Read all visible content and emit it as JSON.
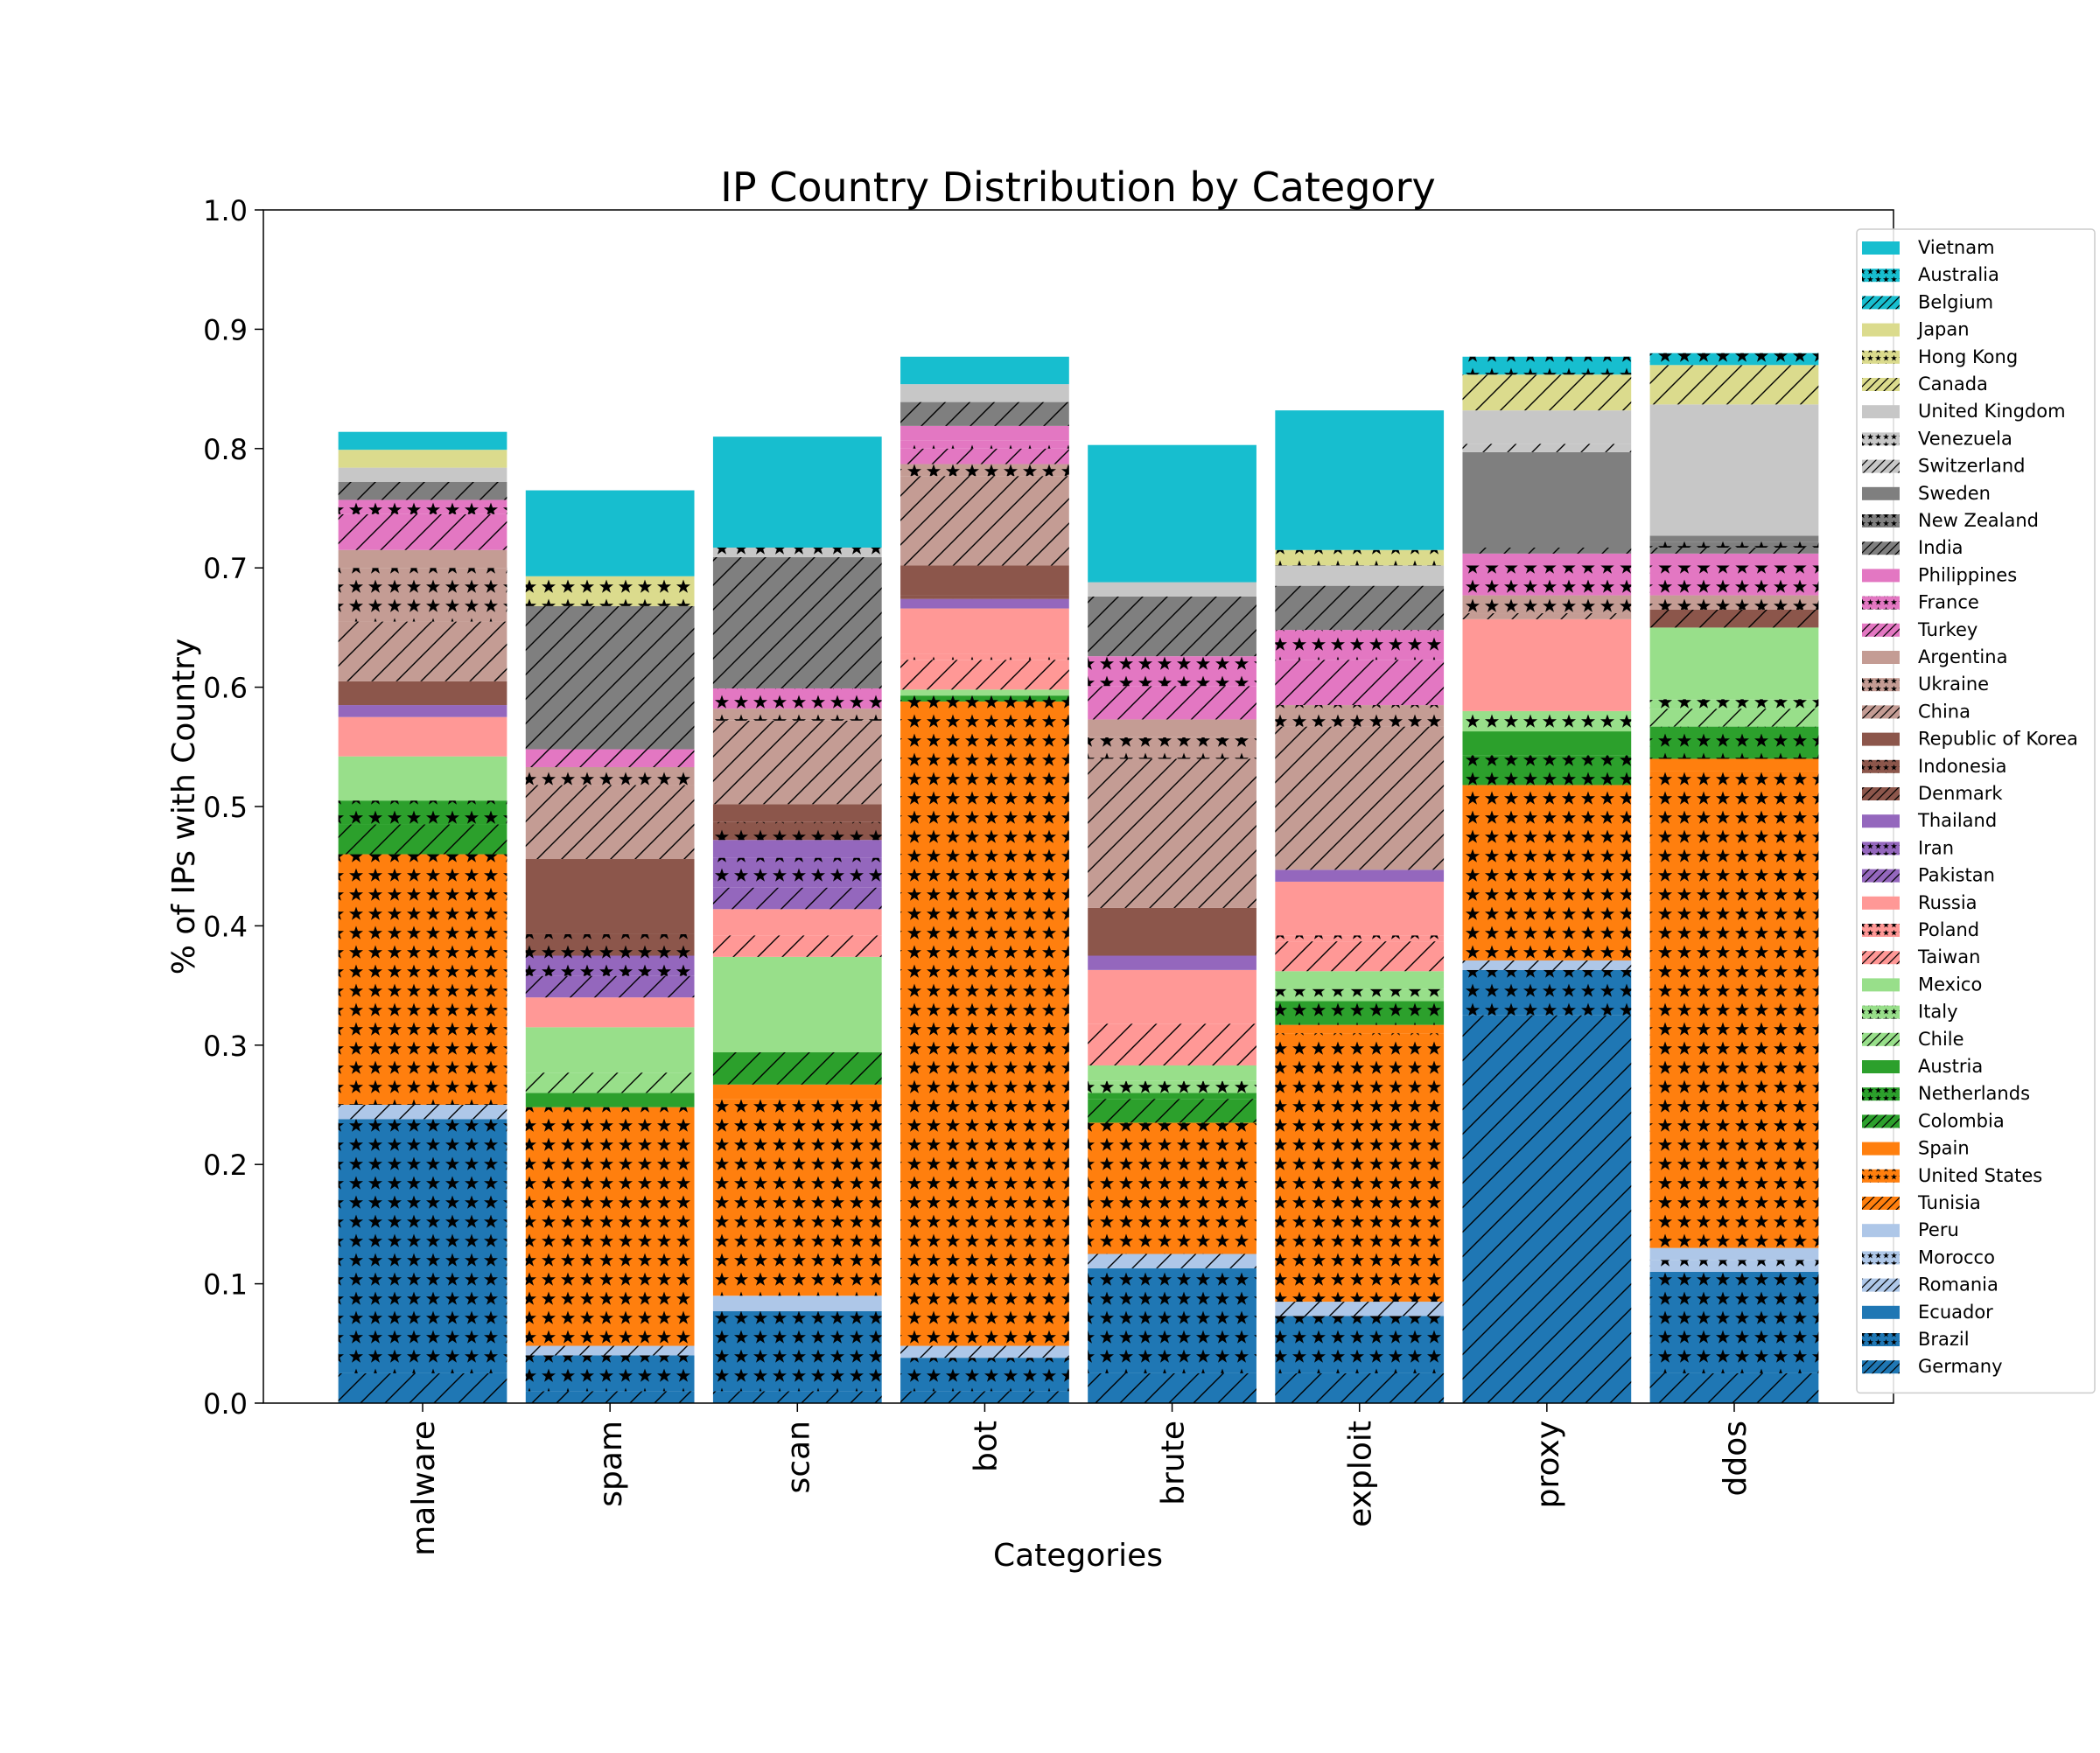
{
  "chart_data": {
    "type": "bar",
    "stacked": true,
    "title": "IP Country Distribution by Category",
    "xlabel": "Categories",
    "ylabel": "% of IPs with Country",
    "ylim": [
      0,
      1.0
    ],
    "yticks": [
      "0.0",
      "0.1",
      "0.2",
      "0.3",
      "0.4",
      "0.5",
      "0.6",
      "0.7",
      "0.8",
      "0.9",
      "1.0"
    ],
    "grid": false,
    "legend_position": "right",
    "categories": [
      "malware",
      "spam",
      "scan",
      "bot",
      "brute",
      "exploit",
      "proxy",
      "ddos"
    ],
    "series": [
      {
        "name": "Germany",
        "color": "#1f77b4",
        "hatch": "slash",
        "values": [
          0.025,
          0.01,
          0.01,
          0.01,
          0.025,
          0.025,
          0.325,
          0.025
        ]
      },
      {
        "name": "Brazil",
        "color": "#1f77b4",
        "hatch": "star",
        "values": [
          0.213,
          0.03,
          0.067,
          0.028,
          0.088,
          0.048,
          0.038,
          0.085
        ]
      },
      {
        "name": "Ecuador",
        "color": "#1f77b4",
        "hatch": "none",
        "values": [
          0,
          0,
          0,
          0,
          0,
          0,
          0,
          0
        ]
      },
      {
        "name": "Romania",
        "color": "#aec7e8",
        "hatch": "slash",
        "values": [
          0.012,
          0.008,
          0,
          0.01,
          0.012,
          0.012,
          0.008,
          0
        ]
      },
      {
        "name": "Morocco",
        "color": "#aec7e8",
        "hatch": "star",
        "values": [
          0,
          0,
          0,
          0,
          0,
          0,
          0,
          0.01
        ]
      },
      {
        "name": "Peru",
        "color": "#aec7e8",
        "hatch": "none",
        "values": [
          0,
          0,
          0.013,
          0,
          0,
          0,
          0,
          0.01
        ]
      },
      {
        "name": "Tunisia",
        "color": "#ff7f0e",
        "hatch": "slash",
        "values": [
          0,
          0,
          0,
          0,
          0,
          0,
          0,
          0
        ]
      },
      {
        "name": "United States",
        "color": "#ff7f0e",
        "hatch": "star",
        "values": [
          0.21,
          0.2,
          0.165,
          0.54,
          0.11,
          0.225,
          0.147,
          0.4
        ]
      },
      {
        "name": "Spain",
        "color": "#ff7f0e",
        "hatch": "none",
        "values": [
          0,
          0,
          0.012,
          0,
          0,
          0.007,
          0,
          0.01
        ]
      },
      {
        "name": "Colombia",
        "color": "#2ca02c",
        "hatch": "slash",
        "values": [
          0.025,
          0,
          0.027,
          0,
          0.02,
          0,
          0,
          0
        ]
      },
      {
        "name": "Netherlands",
        "color": "#2ca02c",
        "hatch": "star",
        "values": [
          0.02,
          0,
          0,
          0.005,
          0.005,
          0.02,
          0.025,
          0.027
        ]
      },
      {
        "name": "Austria",
        "color": "#2ca02c",
        "hatch": "none",
        "values": [
          0,
          0.012,
          0,
          0,
          0,
          0,
          0.02,
          0
        ]
      },
      {
        "name": "Chile",
        "color": "#98df8a",
        "hatch": "slash",
        "values": [
          0,
          0.017,
          0,
          0,
          0,
          0,
          0,
          0.015
        ]
      },
      {
        "name": "Italy",
        "color": "#98df8a",
        "hatch": "star",
        "values": [
          0,
          0,
          0,
          0,
          0.01,
          0.01,
          0.017,
          0.008
        ]
      },
      {
        "name": "Mexico",
        "color": "#98df8a",
        "hatch": "none",
        "values": [
          0.037,
          0.038,
          0.08,
          0.005,
          0.013,
          0.015,
          0,
          0.06
        ]
      },
      {
        "name": "Taiwan",
        "color": "#ff9896",
        "hatch": "slash",
        "values": [
          0,
          0,
          0.018,
          0.025,
          0.035,
          0.025,
          0,
          0
        ]
      },
      {
        "name": "Poland",
        "color": "#ff9896",
        "hatch": "star",
        "values": [
          0,
          0,
          0,
          0.005,
          0,
          0.005,
          0,
          0
        ]
      },
      {
        "name": "Russia",
        "color": "#ff9896",
        "hatch": "none",
        "values": [
          0.033,
          0.025,
          0.022,
          0.038,
          0.045,
          0.045,
          0.077,
          0
        ]
      },
      {
        "name": "Pakistan",
        "color": "#9467bd",
        "hatch": "slash",
        "values": [
          0,
          0.018,
          0.018,
          0,
          0,
          0,
          0,
          0
        ]
      },
      {
        "name": "Iran",
        "color": "#9467bd",
        "hatch": "star",
        "values": [
          0,
          0.017,
          0.025,
          0,
          0,
          0,
          0,
          0
        ]
      },
      {
        "name": "Thailand",
        "color": "#9467bd",
        "hatch": "none",
        "values": [
          0.01,
          0,
          0.015,
          0.008,
          0.012,
          0.01,
          0,
          0
        ]
      },
      {
        "name": "Denmark",
        "color": "#8c564b",
        "hatch": "slash",
        "values": [
          0,
          0,
          0,
          0,
          0,
          0,
          0,
          0.015
        ]
      },
      {
        "name": "Indonesia",
        "color": "#8c564b",
        "hatch": "star",
        "values": [
          0,
          0.018,
          0.015,
          0.003,
          0,
          0,
          0,
          0
        ]
      },
      {
        "name": "Republic of Korea",
        "color": "#8c564b",
        "hatch": "none",
        "values": [
          0.02,
          0.063,
          0.015,
          0.025,
          0.04,
          0,
          0,
          0
        ]
      },
      {
        "name": "China",
        "color": "#c49c94",
        "hatch": "slash",
        "values": [
          0.05,
          0.062,
          0.07,
          0.075,
          0.125,
          0.12,
          0.005,
          0
        ]
      },
      {
        "name": "Ukraine",
        "color": "#c49c94",
        "hatch": "star",
        "values": [
          0.045,
          0.015,
          0.01,
          0.01,
          0.018,
          0.018,
          0.015,
          0.012
        ]
      },
      {
        "name": "Argentina",
        "color": "#c49c94",
        "hatch": "none",
        "values": [
          0.015,
          0,
          0,
          0,
          0.015,
          0,
          0,
          0
        ]
      },
      {
        "name": "Turkey",
        "color": "#e377c2",
        "hatch": "slash",
        "values": [
          0.03,
          0.015,
          0,
          0.013,
          0.028,
          0.038,
          0,
          0
        ]
      },
      {
        "name": "France",
        "color": "#e377c2",
        "hatch": "star",
        "values": [
          0.012,
          0,
          0.017,
          0.007,
          0.025,
          0.025,
          0.025,
          0.025
        ]
      },
      {
        "name": "Philippines",
        "color": "#e377c2",
        "hatch": "none",
        "values": [
          0,
          0,
          0,
          0.012,
          0,
          0,
          0.01,
          0.01
        ]
      },
      {
        "name": "India",
        "color": "#7f7f7f",
        "hatch": "slash",
        "values": [
          0.015,
          0.12,
          0.11,
          0.02,
          0.05,
          0.037,
          0.005,
          0.005
        ]
      },
      {
        "name": "New Zealand",
        "color": "#7f7f7f",
        "hatch": "star",
        "values": [
          0,
          0,
          0,
          0,
          0,
          0,
          0,
          0.005
        ]
      },
      {
        "name": "Sweden",
        "color": "#7f7f7f",
        "hatch": "none",
        "values": [
          0,
          0,
          0,
          0,
          0,
          0,
          0.08,
          0.005
        ]
      },
      {
        "name": "Switzerland",
        "color": "#c7c7c7",
        "hatch": "slash",
        "values": [
          0,
          0,
          0,
          0,
          0,
          0,
          0.007,
          0
        ]
      },
      {
        "name": "Venezuela",
        "color": "#c7c7c7",
        "hatch": "star",
        "values": [
          0,
          0,
          0.008,
          0,
          0,
          0,
          0,
          0
        ]
      },
      {
        "name": "United Kingdom",
        "color": "#c7c7c7",
        "hatch": "none",
        "values": [
          0.012,
          0,
          0,
          0.015,
          0.012,
          0.017,
          0.028,
          0.11
        ]
      },
      {
        "name": "Canada",
        "color": "#dbdb8d",
        "hatch": "slash",
        "values": [
          0,
          0,
          0,
          0,
          0,
          0,
          0.03,
          0.033
        ]
      },
      {
        "name": "Hong Kong",
        "color": "#dbdb8d",
        "hatch": "star",
        "values": [
          0,
          0.025,
          0,
          0,
          0,
          0.013,
          0,
          0
        ]
      },
      {
        "name": "Japan",
        "color": "#dbdb8d",
        "hatch": "none",
        "values": [
          0.015,
          0,
          0,
          0,
          0,
          0,
          0,
          0
        ]
      },
      {
        "name": "Belgium",
        "color": "#17becf",
        "hatch": "slash",
        "values": [
          0,
          0,
          0,
          0,
          0,
          0,
          0,
          0
        ]
      },
      {
        "name": "Australia",
        "color": "#17becf",
        "hatch": "star",
        "values": [
          0,
          0,
          0,
          0,
          0,
          0,
          0.015,
          0.01
        ]
      },
      {
        "name": "Vietnam",
        "color": "#17becf",
        "hatch": "none",
        "values": [
          0.015,
          0.072,
          0.093,
          0.023,
          0.115,
          0.117,
          0,
          0
        ]
      }
    ]
  }
}
